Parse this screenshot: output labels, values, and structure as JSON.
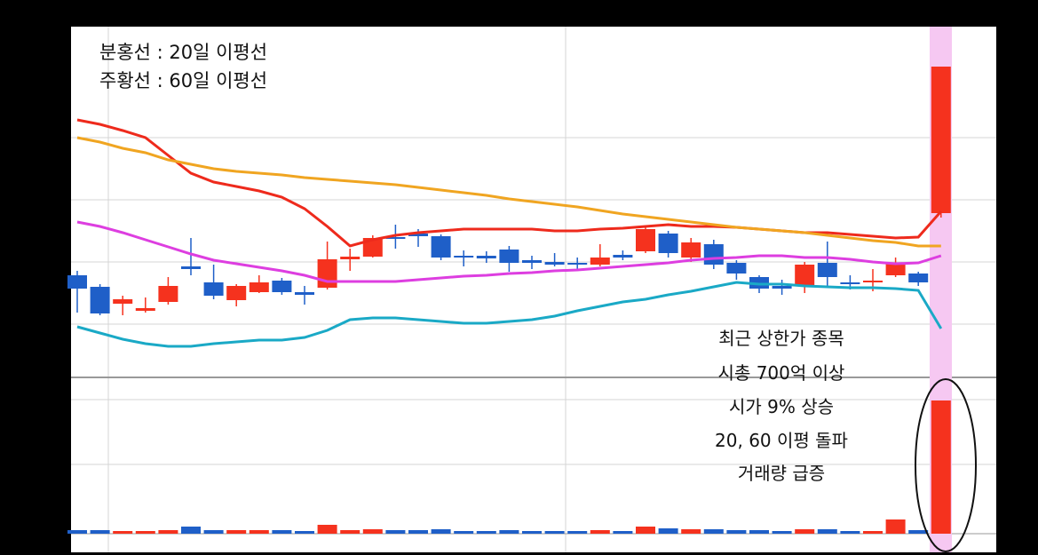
{
  "chart_data": [
    {
      "type": "candlestick",
      "legend": [
        "분홍선 : 20일 이평선",
        "주황선 : 60일 이평선"
      ],
      "annotations": [
        "최근 상한가 종목",
        "시총 700억 이상",
        "시가 9% 상승",
        "20, 60 이평 돌파",
        "거래량 급증"
      ],
      "up_color": "#f5321e",
      "down_color": "#1f5fc8",
      "ylim": [
        0,
        100
      ],
      "open": [
        28.75,
        25.5,
        20.75,
        18.75,
        21.25,
        31.25,
        26.75,
        21.75,
        24,
        27.25,
        24,
        25.25,
        33.25,
        34,
        39.5,
        40.5,
        39.75,
        34.25,
        34.25,
        36,
        33,
        32.5,
        32.25,
        31.75,
        34.5,
        35.5,
        40.5,
        33.75,
        37.5,
        32.25,
        28.25,
        25.75,
        25.75,
        32.25,
        26.75,
        26.75,
        28.75,
        29.25,
        46.25
      ],
      "high": [
        30,
        26.25,
        23,
        22.5,
        28.25,
        39.25,
        31.75,
        26.25,
        28.75,
        28,
        25.75,
        38.25,
        36.25,
        40,
        43,
        41.75,
        40.25,
        35.75,
        35.5,
        37,
        34.25,
        35,
        33.75,
        37.5,
        35.75,
        42.5,
        41.25,
        39.25,
        38.75,
        33,
        28.75,
        27.5,
        32.5,
        38.25,
        28.75,
        30.5,
        33.75,
        29.75,
        87.5
      ],
      "low": [
        18.25,
        17.5,
        17.5,
        18.25,
        20.5,
        28.75,
        22,
        20,
        23.75,
        23.25,
        20.5,
        24.75,
        30,
        33.75,
        36.25,
        36.75,
        33,
        31.25,
        32.25,
        29.75,
        30.5,
        31.25,
        30.5,
        31.25,
        33,
        35,
        33.75,
        32.5,
        30.5,
        27.5,
        23.75,
        23.25,
        23.75,
        25.75,
        24.75,
        24.25,
        28.25,
        25.75,
        45
      ],
      "close": [
        25,
        18,
        22,
        19.5,
        25.75,
        30.5,
        23,
        25.75,
        26.75,
        24,
        23.25,
        33.25,
        34,
        39.25,
        39,
        39.75,
        33.75,
        33.75,
        33.5,
        32.25,
        32.25,
        31.75,
        31.75,
        33.75,
        33.75,
        41.75,
        35,
        38,
        31.75,
        29.25,
        25,
        25,
        31.75,
        28.25,
        26.25,
        27.25,
        32,
        26.75,
        87.5
      ],
      "series": [
        {
          "color": "#ee2a1c",
          "values": [
            72.5,
            71.25,
            69.5,
            67.5,
            62.5,
            57.5,
            55,
            53.75,
            52.5,
            50.75,
            47.5,
            42.5,
            37,
            38.75,
            40,
            40.75,
            41.25,
            41.75,
            41.75,
            41.75,
            41.75,
            41.25,
            41.25,
            41.75,
            42,
            42.5,
            43,
            42.5,
            42.5,
            42.25,
            41.75,
            41.25,
            40.75,
            40.75,
            40.25,
            39.75,
            39.25,
            39.5,
            46.75
          ]
        },
        {
          "color": "#f0a521",
          "values": [
            67.5,
            66.25,
            64.5,
            63.25,
            61.25,
            60,
            58.75,
            58,
            57.5,
            57,
            56.25,
            55.75,
            55.25,
            54.75,
            54.25,
            53.5,
            52.75,
            52,
            51.25,
            50.25,
            49.5,
            48.75,
            48,
            47,
            46,
            45.25,
            44.5,
            43.75,
            43,
            42.25,
            41.75,
            41.25,
            40.75,
            40,
            39.25,
            38.5,
            38,
            37,
            37
          ]
        },
        {
          "color": "#dd3ee0",
          "values": [
            43.75,
            42.5,
            40.75,
            38.75,
            36.75,
            34.75,
            33,
            32,
            31,
            30,
            28.75,
            27,
            27,
            27,
            27,
            27.5,
            28,
            28.5,
            28.75,
            29.25,
            29.5,
            30,
            30.25,
            30.75,
            31.25,
            31.75,
            32.25,
            33,
            33.5,
            33.75,
            34.25,
            34.25,
            33.75,
            33.75,
            33.25,
            32.5,
            32,
            32.25,
            34.25
          ]
        },
        {
          "color": "#1aa9c6",
          "values": [
            14.25,
            12.5,
            10.75,
            9.5,
            8.75,
            8.75,
            9.5,
            10,
            10.5,
            10.5,
            11.25,
            13.25,
            16.25,
            16.75,
            16.75,
            16.25,
            15.75,
            15.25,
            15.25,
            15.75,
            16.25,
            17.25,
            18.75,
            20,
            21.25,
            22,
            23.25,
            24.25,
            25.5,
            26.75,
            26.25,
            26.25,
            25.75,
            25.5,
            25.25,
            25.25,
            25,
            24.5,
            13.75
          ]
        }
      ]
    },
    {
      "type": "bar",
      "ylim": [
        0,
        170
      ],
      "values": [
        4,
        4,
        3,
        3,
        4,
        8,
        4,
        4,
        4,
        4,
        3,
        10,
        4,
        5,
        4,
        4,
        5,
        3,
        3,
        4,
        3,
        3,
        3,
        4,
        3,
        8,
        6,
        5,
        5,
        4,
        4,
        3,
        5,
        5,
        3,
        3,
        16,
        4,
        150
      ]
    }
  ]
}
